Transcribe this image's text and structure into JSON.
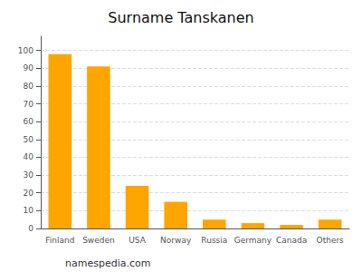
{
  "chart_data": {
    "type": "bar",
    "title": "Surname Tanskanen",
    "categories": [
      "Finland",
      "Sweden",
      "USA",
      "Norway",
      "Russia",
      "Germany",
      "Canada",
      "Others"
    ],
    "values": [
      98,
      91,
      24,
      15,
      5,
      3,
      2,
      5
    ],
    "color": "#FFA500",
    "ylim": [
      0,
      108
    ],
    "yticks": [
      0,
      10,
      20,
      30,
      40,
      50,
      60,
      70,
      80,
      90,
      100
    ],
    "grid": true,
    "annotations": [
      "namespedia.com"
    ]
  }
}
